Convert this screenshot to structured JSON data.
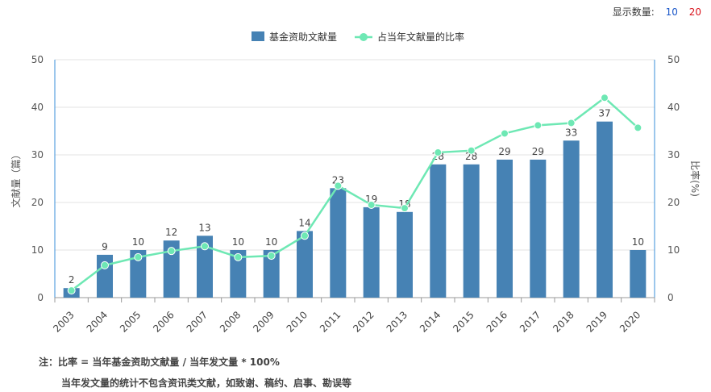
{
  "topbar": {
    "label": "显示数量:",
    "options": [
      "10",
      "20"
    ]
  },
  "notes": {
    "line1": "注：比率 = 当年基金资助文献量 / 当年发文量 * 100%",
    "line2": "当年发文量的统计不包含资讯类文献，如致谢、稿约、启事、勘误等"
  },
  "chart_data": {
    "type": "bar",
    "categories": [
      "2003",
      "2004",
      "2005",
      "2006",
      "2007",
      "2008",
      "2009",
      "2010",
      "2011",
      "2012",
      "2013",
      "2014",
      "2015",
      "2016",
      "2017",
      "2018",
      "2019",
      "2020"
    ],
    "series": [
      {
        "name": "基金资助文献量",
        "type": "bar",
        "axis": "left",
        "values": [
          2,
          9,
          10,
          12,
          13,
          10,
          10,
          14,
          23,
          19,
          18,
          28,
          28,
          29,
          29,
          33,
          37,
          10
        ]
      },
      {
        "name": "占当年文献量的比率",
        "type": "line",
        "axis": "right",
        "values": [
          1.5,
          6.8,
          8.5,
          9.8,
          10.8,
          8.5,
          8.8,
          13.0,
          23.5,
          19.5,
          18.8,
          30.5,
          30.9,
          34.5,
          36.2,
          36.7,
          42.0,
          35.7
        ]
      }
    ],
    "ylabel": "文献量（篇）",
    "y2label": "比率(%)",
    "ylim": [
      0,
      50
    ],
    "y2lim": [
      0,
      50
    ],
    "yticks": [
      0,
      10,
      20,
      30,
      40,
      50
    ],
    "y2ticks": [
      0,
      10,
      20,
      30,
      40,
      50
    ],
    "bar_labels": true,
    "grid": true,
    "legend": "top-center",
    "colors": {
      "bar": "#4682b4",
      "line": "#6ee8b4",
      "axis_right": "#3a8fd8"
    }
  }
}
